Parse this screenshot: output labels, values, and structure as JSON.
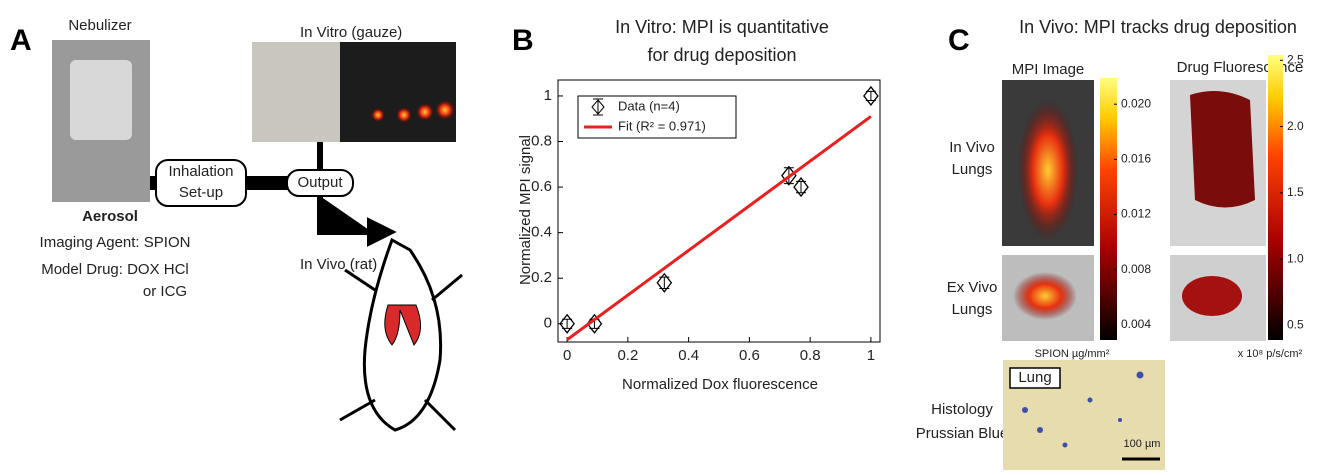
{
  "panel_a": {
    "letter": "A",
    "nebulizer": "Nebulizer",
    "in_vitro": "In Vitro (gauze)",
    "setup": [
      "Inhalation",
      "Set-up"
    ],
    "output": "Output",
    "in_vivo": "In Vivo (rat)",
    "aerosol": "Aerosol",
    "agent": "Imaging Agent: SPION",
    "drug": "Model Drug: DOX HCl",
    "drug_alt": "or ICG"
  },
  "chart_data": {
    "type": "scatter",
    "letter": "B",
    "title": [
      "In Vitro:  MPI is quantitative",
      "for drug deposition"
    ],
    "x_label": "Normalized Dox fluorescence",
    "y_label": "Normalized MPI signal",
    "series": [
      {
        "name": "Data (n=4)",
        "color": "#000000",
        "x": [
          0,
          0.09,
          0.32,
          0.73,
          0.77,
          1.0
        ],
        "values": [
          0,
          0,
          0.18,
          0.65,
          0.6,
          1.0
        ],
        "errors": [
          0.02,
          0.02,
          0.025,
          0.035,
          0.025,
          0.02
        ]
      },
      {
        "name": "Fit (R² = 0.971)",
        "color": "#e8201f",
        "x": [
          0,
          1
        ],
        "values": [
          -0.07,
          0.91
        ]
      }
    ],
    "xlim": [
      -0.03,
      1.03
    ],
    "ylim": [
      -0.08,
      1.07
    ],
    "xticks": [
      0,
      0.2,
      0.4,
      0.6,
      0.8,
      1
    ],
    "yticks": [
      0,
      0.2,
      0.4,
      0.6,
      0.8,
      1
    ],
    "legend": "upper left"
  },
  "panel_c": {
    "letter": "C",
    "title": "In Vivo:  MPI tracks drug deposition",
    "mpi_image": "MPI  Image",
    "drug_fluorescence": "Drug Fluorescence",
    "in_vivo": [
      "In Vivo",
      "Lungs"
    ],
    "ex_vivo": [
      "Ex Vivo",
      "Lungs"
    ],
    "histology": [
      "Histology",
      "Prussian Blue"
    ],
    "lung": "Lung",
    "scale": "100 µm",
    "mpi_colorbar": {
      "label": "SPION µg/mm²",
      "lim": [
        0.0029,
        0.0219
      ],
      "ticks": [
        {
          "value": 0.02,
          "label": "0.020"
        },
        {
          "value": 0.016,
          "label": "0.016"
        },
        {
          "value": 0.012,
          "label": "0.012"
        },
        {
          "value": 0.008,
          "label": "0.008"
        },
        {
          "value": 0.004,
          "label": "0.004"
        }
      ]
    },
    "drug_colorbar": {
      "label": "x 10⁸ p/s/cm²",
      "lim": [
        0.39,
        2.54
      ],
      "ticks": [
        2.5,
        {
          "value": 2.0,
          "label": "2.0"
        },
        1.5,
        {
          "value": 1.0,
          "label": "1.0"
        },
        0.5
      ]
    }
  }
}
